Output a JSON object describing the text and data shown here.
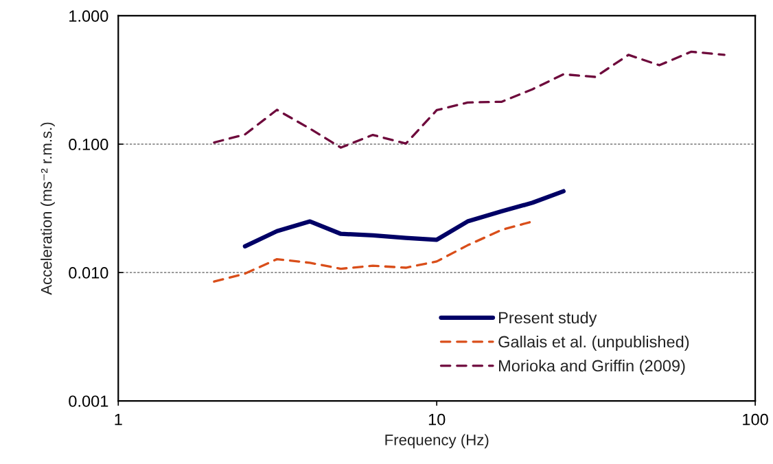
{
  "chart_data": {
    "type": "line",
    "xlabel": "Frequency (Hz)",
    "ylabel": "Acceleration (ms⁻² r.m.s.)",
    "log": "xy",
    "xlim": [
      1,
      100
    ],
    "xticks": [
      1,
      10,
      100
    ],
    "ylim": [
      0.001,
      1
    ],
    "yticks": [
      {
        "value": 0.001,
        "label": "0.001"
      },
      {
        "value": 0.01,
        "label": "0.010"
      },
      {
        "value": 0.1,
        "label": "0.100"
      },
      {
        "value": 1,
        "label": "1.000"
      }
    ],
    "grid": "y",
    "legend": "bottom right",
    "marker": "none",
    "series": [
      {
        "name": "Present study",
        "color": "#000066",
        "line_style": "solid",
        "x": [
          2.5,
          3.15,
          4,
          5,
          6.3,
          8,
          10,
          12.5,
          16,
          20,
          25
        ],
        "values": [
          0.016,
          0.021,
          0.025,
          0.02,
          0.0195,
          0.0186,
          0.018,
          0.025,
          0.03,
          0.035,
          0.043
        ]
      },
      {
        "name": "Gallais et al. (unpublished)",
        "color": "#d94e1a",
        "line_style": "dashed",
        "x": [
          2,
          2.5,
          3.15,
          4,
          5,
          6.3,
          8,
          10,
          12.5,
          16,
          20
        ],
        "values": [
          0.0085,
          0.0098,
          0.0127,
          0.0119,
          0.0107,
          0.0113,
          0.0109,
          0.0122,
          0.0163,
          0.0215,
          0.025
        ]
      },
      {
        "name": "Morioka and Griffin (2009)",
        "color": "#6e0a3c",
        "line_style": "dashed",
        "x": [
          2,
          2.5,
          3.15,
          4,
          5,
          6.3,
          8,
          10,
          12.5,
          16,
          20,
          25,
          31.5,
          40,
          50,
          63,
          80
        ],
        "values": [
          0.103,
          0.119,
          0.185,
          0.132,
          0.094,
          0.118,
          0.101,
          0.184,
          0.211,
          0.214,
          0.268,
          0.35,
          0.334,
          0.496,
          0.412,
          0.525,
          0.496
        ]
      }
    ]
  }
}
